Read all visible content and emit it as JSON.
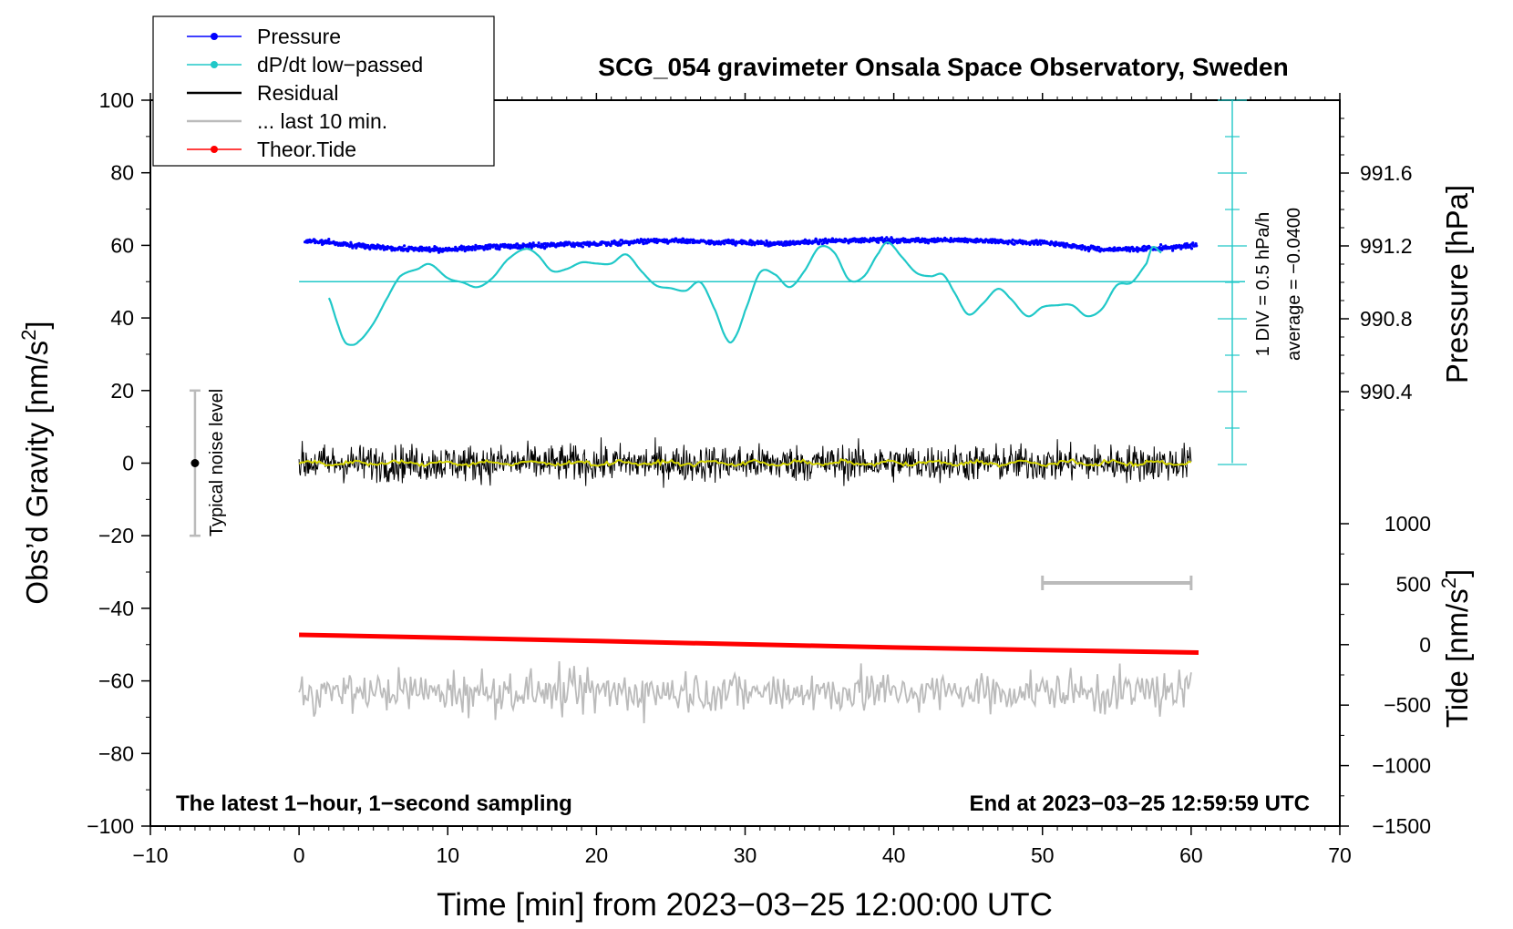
{
  "chart_data": {
    "type": "line",
    "title": "SCG_054 gravimeter Onsala Space Observatory, Sweden",
    "xlabel": "Time [min] from 2023−03−25 12:00:00 UTC",
    "ylabel": "Obs’d Gravity [nm/s",
    "ylabel_sup": "2",
    "ylabel_close": "]",
    "xlim": [
      -10,
      70
    ],
    "ylim": [
      -100,
      100
    ],
    "x_ticks": [
      "−10",
      "0",
      "10",
      "20",
      "30",
      "40",
      "50",
      "60",
      "70"
    ],
    "y_ticks": [
      "100",
      "80",
      "60",
      "40",
      "20",
      "0",
      "−20",
      "−40",
      "−60",
      "−80",
      "−100"
    ],
    "pressure_axis": {
      "label": "Pressure [hPa]",
      "ticks": [
        "991.6",
        "991.2",
        "990.8",
        "990.4"
      ],
      "tick_values": [
        991.6,
        991.2,
        990.8,
        990.4
      ]
    },
    "tide_axis": {
      "label": "Tide [nm/s",
      "label_sup": "2",
      "label_close": "]",
      "ticks": [
        "1000",
        "500",
        "0",
        "−500",
        "−1000",
        "−1500"
      ],
      "tick_values": [
        1000,
        500,
        0,
        -500,
        -1000,
        -1500
      ]
    },
    "legend": {
      "position": "top-left",
      "entries": [
        {
          "label": "Pressure",
          "color": "#0000ff",
          "marker": "dot"
        },
        {
          "label": "dP/dt low−passed",
          "color": "#20c8c8",
          "marker": "dot"
        },
        {
          "label": "Residual",
          "color": "#000000",
          "marker": "none"
        },
        {
          "label": "... last 10 min.",
          "color": "#bbbbbb",
          "marker": "none"
        },
        {
          "label": "Theor.Tide",
          "color": "#ff0000",
          "marker": "dot"
        }
      ]
    },
    "annotations": {
      "noise_label": "Typical noise level",
      "noise_range": [
        -20,
        20
      ],
      "dpdt_scale": "1 DIV = 0.5 hPa/h",
      "dpdt_average": "average = −0.0400",
      "left_note": "The latest 1−hour, 1−second sampling",
      "right_note": "End at 2023−03−25 12:59:59 UTC"
    },
    "series": [
      {
        "name": "Pressure",
        "unit": "hPa",
        "x": [
          0,
          2,
          4,
          6,
          8,
          10,
          12,
          14,
          16,
          18,
          20,
          22,
          24,
          26,
          28,
          30,
          32,
          34,
          36,
          38,
          40,
          42,
          44,
          46,
          48,
          50,
          52,
          54,
          56,
          58,
          60
        ],
        "values": [
          991.23,
          991.22,
          991.2,
          991.19,
          991.18,
          991.18,
          991.19,
          991.2,
          991.2,
          991.21,
          991.21,
          991.22,
          991.23,
          991.23,
          991.22,
          991.22,
          991.21,
          991.22,
          991.23,
          991.23,
          991.23,
          991.23,
          991.23,
          991.23,
          991.22,
          991.22,
          991.2,
          991.18,
          991.18,
          991.19,
          991.2
        ]
      },
      {
        "name": "dP/dt low−passed",
        "unit": "hPa/h",
        "baseline": 50,
        "x": [
          2.0,
          2.5,
          3.0,
          3.4,
          4.0,
          5.0,
          6.0,
          6.8,
          8.0,
          8.8,
          10.0,
          11.0,
          12.0,
          13.0,
          14.0,
          15.2,
          16.0,
          17.0,
          18.0,
          19.0,
          20.0,
          21.0,
          22.0,
          23.0,
          24.0,
          25.0,
          26.0,
          27.0,
          28.0,
          28.8,
          29.3,
          30.0,
          31.0,
          32.0,
          33.0,
          34.0,
          35.0,
          36.0,
          37.0,
          38.0,
          39.0,
          39.6,
          40.5,
          41.5,
          42.5,
          43.3,
          44.0,
          45.0,
          46.0,
          47.0,
          47.8,
          49.0,
          50.0,
          51.0,
          52.0,
          53.0,
          54.0,
          55.0,
          56.0,
          57.0,
          57.4,
          58.0
        ],
        "values": [
          45.5,
          39.5,
          34.0,
          32.6,
          33.5,
          38.5,
          46.0,
          51.5,
          53.5,
          54.8,
          51.0,
          49.8,
          48.5,
          51.0,
          56.0,
          59.0,
          57.5,
          53.0,
          53.5,
          55.3,
          55.0,
          55.0,
          57.5,
          53.0,
          49.0,
          48.2,
          47.5,
          49.8,
          42.0,
          34.0,
          34.5,
          42.0,
          52.5,
          52.0,
          48.5,
          53.0,
          59.5,
          58.0,
          50.5,
          51.5,
          58.0,
          60.8,
          57.0,
          52.5,
          51.5,
          52.0,
          47.5,
          41.0,
          44.0,
          48.0,
          45.5,
          40.5,
          43.0,
          43.5,
          43.5,
          40.5,
          42.5,
          49.0,
          49.8,
          55.0,
          59.5,
          58.0
        ]
      },
      {
        "name": "Residual",
        "unit": "nm/s2",
        "x": [
          0,
          10,
          20,
          30,
          40,
          50,
          60
        ],
        "values": [
          0,
          0,
          0,
          0,
          0,
          0,
          0
        ],
        "envelope": [
          -13,
          13
        ],
        "smoothed_color": "#d4d400"
      },
      {
        "name": "... last 10 min.",
        "unit": "nm/s2",
        "x": [
          0,
          5,
          10,
          15,
          20,
          25,
          30,
          35,
          40,
          45,
          50,
          55,
          60
        ],
        "values": [
          -62,
          -63,
          -63,
          -63,
          -63,
          -63,
          -63,
          -63,
          -63,
          -63,
          -63,
          -63,
          -63
        ],
        "envelope": [
          -76,
          -49
        ],
        "bar_x": [
          50,
          60
        ],
        "bar_y": -33
      },
      {
        "name": "Theor.Tide",
        "unit": "nm/s2",
        "x": [
          0,
          10,
          20,
          30,
          40,
          50,
          60.5
        ],
        "values": [
          -47.3,
          -48.1,
          -49.0,
          -49.9,
          -50.8,
          -51.5,
          -52.2
        ]
      }
    ]
  }
}
